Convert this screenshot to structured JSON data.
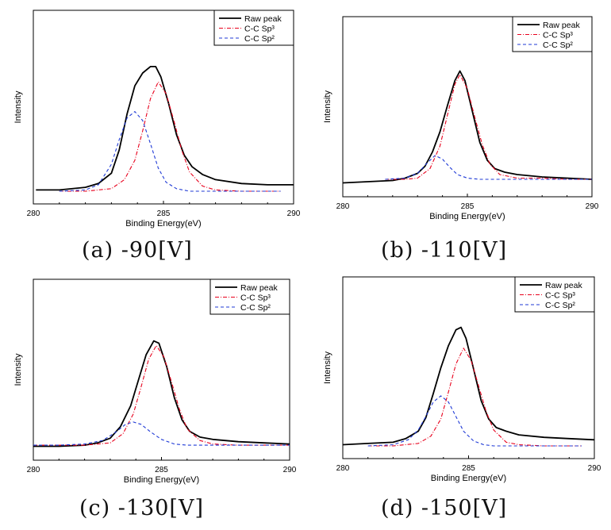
{
  "colors": {
    "raw": "#000000",
    "sp3": "#e8001c",
    "sp2": "#1f3ad6",
    "frame": "#000000"
  },
  "legend_position": "top-right",
  "chart_data": [
    {
      "type": "line",
      "caption": "(a) -90[V]",
      "xlabel": "Binding Energy(eV)",
      "ylabel": "Intensity",
      "xlim": [
        280,
        290
      ],
      "ylim": [
        0,
        1
      ],
      "xticks": [
        280,
        285,
        290
      ],
      "series": [
        {
          "name": "Raw peak",
          "x": [
            280.1,
            281,
            282,
            282.5,
            283,
            283.3,
            283.6,
            283.9,
            284.2,
            284.5,
            284.7,
            284.9,
            285.2,
            285.5,
            285.8,
            286.1,
            286.5,
            287,
            288,
            289,
            290
          ],
          "y": [
            0.01,
            0.01,
            0.03,
            0.06,
            0.14,
            0.32,
            0.6,
            0.82,
            0.92,
            0.97,
            0.97,
            0.89,
            0.68,
            0.44,
            0.28,
            0.19,
            0.13,
            0.09,
            0.06,
            0.05,
            0.05
          ]
        },
        {
          "name": "C-C Sp³",
          "x": [
            281,
            282,
            283,
            283.5,
            283.9,
            284.2,
            284.5,
            284.8,
            285.1,
            285.4,
            285.7,
            286,
            286.5,
            287,
            288,
            289,
            289.5
          ],
          "y": [
            0.0,
            0.0,
            0.02,
            0.09,
            0.24,
            0.47,
            0.72,
            0.85,
            0.76,
            0.55,
            0.32,
            0.15,
            0.04,
            0.01,
            0.0,
            0.0,
            0.0
          ]
        },
        {
          "name": "C-C Sp²",
          "x": [
            281,
            282,
            282.5,
            283,
            283.3,
            283.6,
            283.9,
            284.2,
            284.5,
            284.8,
            285.1,
            285.5,
            286,
            287,
            288,
            289,
            289.5
          ],
          "y": [
            0.0,
            0.01,
            0.05,
            0.21,
            0.4,
            0.57,
            0.62,
            0.55,
            0.37,
            0.18,
            0.07,
            0.02,
            0.0,
            0.0,
            0.0,
            0.0,
            0.0
          ]
        }
      ]
    },
    {
      "type": "line",
      "caption": "(b) -110[V]",
      "xlabel": "Binding Energy(eV)",
      "ylabel": "Intensity",
      "xlim": [
        280,
        290
      ],
      "ylim": [
        0,
        1
      ],
      "xticks": [
        280,
        285,
        290
      ],
      "series": [
        {
          "name": "Raw peak",
          "x": [
            280,
            281,
            282,
            282.5,
            283,
            283.3,
            283.6,
            283.9,
            284.2,
            284.5,
            284.7,
            284.9,
            285.2,
            285.5,
            285.8,
            286.1,
            286.5,
            287,
            288,
            289,
            290
          ],
          "y": [
            0.01,
            0.02,
            0.03,
            0.05,
            0.09,
            0.15,
            0.27,
            0.44,
            0.66,
            0.87,
            0.95,
            0.87,
            0.61,
            0.35,
            0.2,
            0.13,
            0.1,
            0.08,
            0.06,
            0.05,
            0.04
          ]
        },
        {
          "name": "C-C Sp³",
          "x": [
            281.7,
            282.5,
            283,
            283.5,
            283.9,
            284.2,
            284.5,
            284.7,
            285,
            285.3,
            285.6,
            285.9,
            286.3,
            287,
            288,
            289,
            290
          ],
          "y": [
            0.04,
            0.04,
            0.05,
            0.13,
            0.32,
            0.58,
            0.84,
            0.92,
            0.8,
            0.56,
            0.33,
            0.17,
            0.08,
            0.05,
            0.05,
            0.04,
            0.04
          ]
        },
        {
          "name": "C-C Sp²",
          "x": [
            281.7,
            282.5,
            283,
            283.4,
            283.7,
            284,
            284.3,
            284.6,
            285,
            285.5,
            286,
            287,
            288,
            289,
            290
          ],
          "y": [
            0.04,
            0.05,
            0.09,
            0.18,
            0.24,
            0.21,
            0.14,
            0.08,
            0.05,
            0.04,
            0.04,
            0.04,
            0.04,
            0.04,
            0.04
          ]
        }
      ]
    },
    {
      "type": "line",
      "caption": "(c) -130[V]",
      "xlabel": "Binding Energy(eV)",
      "ylabel": "Intensity",
      "xlim": [
        280,
        290
      ],
      "ylim": [
        0,
        1
      ],
      "xticks": [
        280,
        285,
        290
      ],
      "series": [
        {
          "name": "Raw peak",
          "x": [
            280,
            281,
            282,
            282.5,
            283,
            283.4,
            283.8,
            284.1,
            284.4,
            284.7,
            284.9,
            285.2,
            285.5,
            285.8,
            286.1,
            286.5,
            287,
            288,
            289,
            290
          ],
          "y": [
            0.01,
            0.01,
            0.02,
            0.04,
            0.08,
            0.18,
            0.36,
            0.58,
            0.8,
            0.92,
            0.9,
            0.7,
            0.43,
            0.24,
            0.14,
            0.09,
            0.07,
            0.05,
            0.04,
            0.03
          ]
        },
        {
          "name": "C-C Sp³",
          "x": [
            280,
            281,
            282,
            283,
            283.5,
            283.9,
            284.2,
            284.5,
            284.8,
            285.1,
            285.4,
            285.7,
            286,
            286.5,
            287,
            288,
            289,
            290
          ],
          "y": [
            0.02,
            0.02,
            0.02,
            0.04,
            0.12,
            0.29,
            0.52,
            0.76,
            0.88,
            0.78,
            0.56,
            0.33,
            0.16,
            0.06,
            0.03,
            0.02,
            0.02,
            0.02
          ]
        },
        {
          "name": "C-C Sp²",
          "x": [
            280,
            281,
            282,
            282.7,
            283.2,
            283.6,
            283.9,
            284.2,
            284.6,
            285,
            285.5,
            286,
            287,
            288,
            289,
            290
          ],
          "y": [
            0.02,
            0.02,
            0.03,
            0.06,
            0.13,
            0.2,
            0.22,
            0.2,
            0.13,
            0.07,
            0.03,
            0.02,
            0.02,
            0.02,
            0.02,
            0.02
          ]
        }
      ]
    },
    {
      "type": "line",
      "caption": "(d) -150[V]",
      "xlabel": "Binding Energy(eV)",
      "ylabel": "Intensity",
      "xlim": [
        280,
        290
      ],
      "ylim": [
        0,
        1
      ],
      "xticks": [
        280,
        285,
        290
      ],
      "series": [
        {
          "name": "Raw peak",
          "x": [
            280,
            281,
            282,
            282.5,
            283,
            283.3,
            283.6,
            283.9,
            284.2,
            284.5,
            284.7,
            284.9,
            285.2,
            285.5,
            285.8,
            286.1,
            286.5,
            287,
            288,
            289,
            290
          ],
          "y": [
            0.01,
            0.02,
            0.03,
            0.06,
            0.12,
            0.23,
            0.43,
            0.64,
            0.82,
            0.95,
            0.97,
            0.88,
            0.63,
            0.37,
            0.22,
            0.15,
            0.12,
            0.09,
            0.07,
            0.06,
            0.05
          ]
        },
        {
          "name": "C-C Sp³",
          "x": [
            281,
            282,
            283,
            283.5,
            283.9,
            284.2,
            284.5,
            284.8,
            285.1,
            285.4,
            285.7,
            286,
            286.5,
            287,
            288,
            289,
            289.5
          ],
          "y": [
            0.0,
            0.0,
            0.02,
            0.08,
            0.22,
            0.44,
            0.67,
            0.8,
            0.7,
            0.49,
            0.28,
            0.13,
            0.03,
            0.01,
            0.0,
            0.0,
            0.0
          ]
        },
        {
          "name": "C-C Sp²",
          "x": [
            281,
            282,
            282.6,
            283,
            283.3,
            283.6,
            283.9,
            284.2,
            284.5,
            284.8,
            285.2,
            285.6,
            286,
            287,
            288,
            289.5
          ],
          "y": [
            0.0,
            0.01,
            0.05,
            0.13,
            0.24,
            0.36,
            0.41,
            0.36,
            0.24,
            0.12,
            0.04,
            0.01,
            0.0,
            0.0,
            0.0,
            0.0
          ]
        }
      ]
    }
  ]
}
